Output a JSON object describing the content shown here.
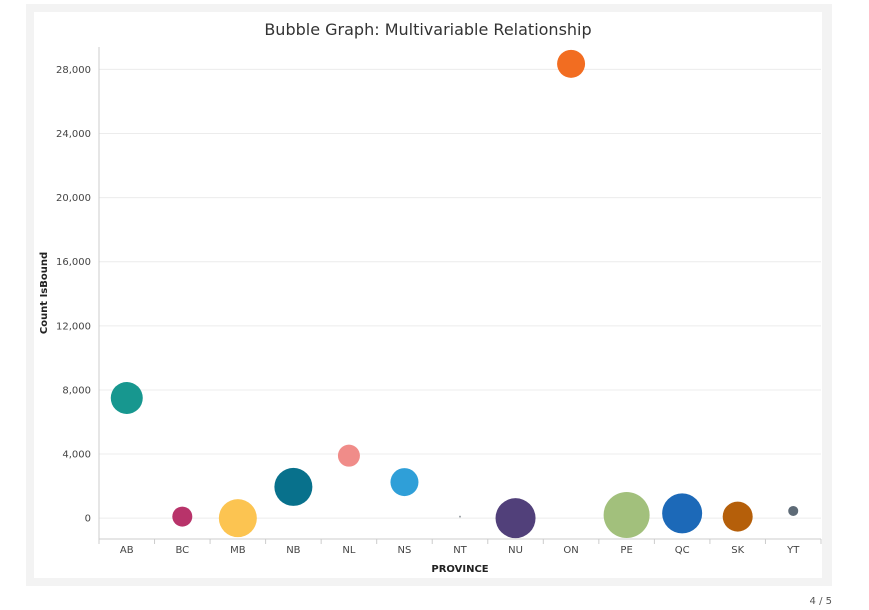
{
  "chart_data": {
    "type": "scatter",
    "title": "Bubble Graph: Multivariable Relationship",
    "xlabel": "PROVINCE",
    "ylabel": "Count IsBound",
    "categories": [
      "AB",
      "BC",
      "MB",
      "NB",
      "NL",
      "NS",
      "NT",
      "NU",
      "ON",
      "PE",
      "QC",
      "SK",
      "YT"
    ],
    "values": [
      7500,
      100,
      0,
      1950,
      3900,
      2250,
      100,
      0,
      28350,
      200,
      300,
      100,
      450
    ],
    "bubble_size": [
      16,
      10,
      19,
      19,
      11,
      14,
      1,
      20,
      14,
      23,
      20,
      15,
      5
    ],
    "colors": [
      "#17978f",
      "#b8336a",
      "#fcc451",
      "#08718c",
      "#f08c89",
      "#2f9fd8",
      "#9aa1a5",
      "#51407a",
      "#f26d21",
      "#a2c07c",
      "#1c69b8",
      "#b55f0a",
      "#5d6a76"
    ],
    "ylim": [
      -1300,
      29400
    ],
    "yticks": [
      0,
      4000,
      8000,
      12000,
      16000,
      20000,
      24000,
      28000
    ],
    "ytick_labels": [
      "0",
      "4,000",
      "8,000",
      "12,000",
      "16,000",
      "20,000",
      "24,000",
      "28,000"
    ],
    "grid": true,
    "legend": "none"
  },
  "footer": {
    "page_indicator": "4 / 5"
  }
}
